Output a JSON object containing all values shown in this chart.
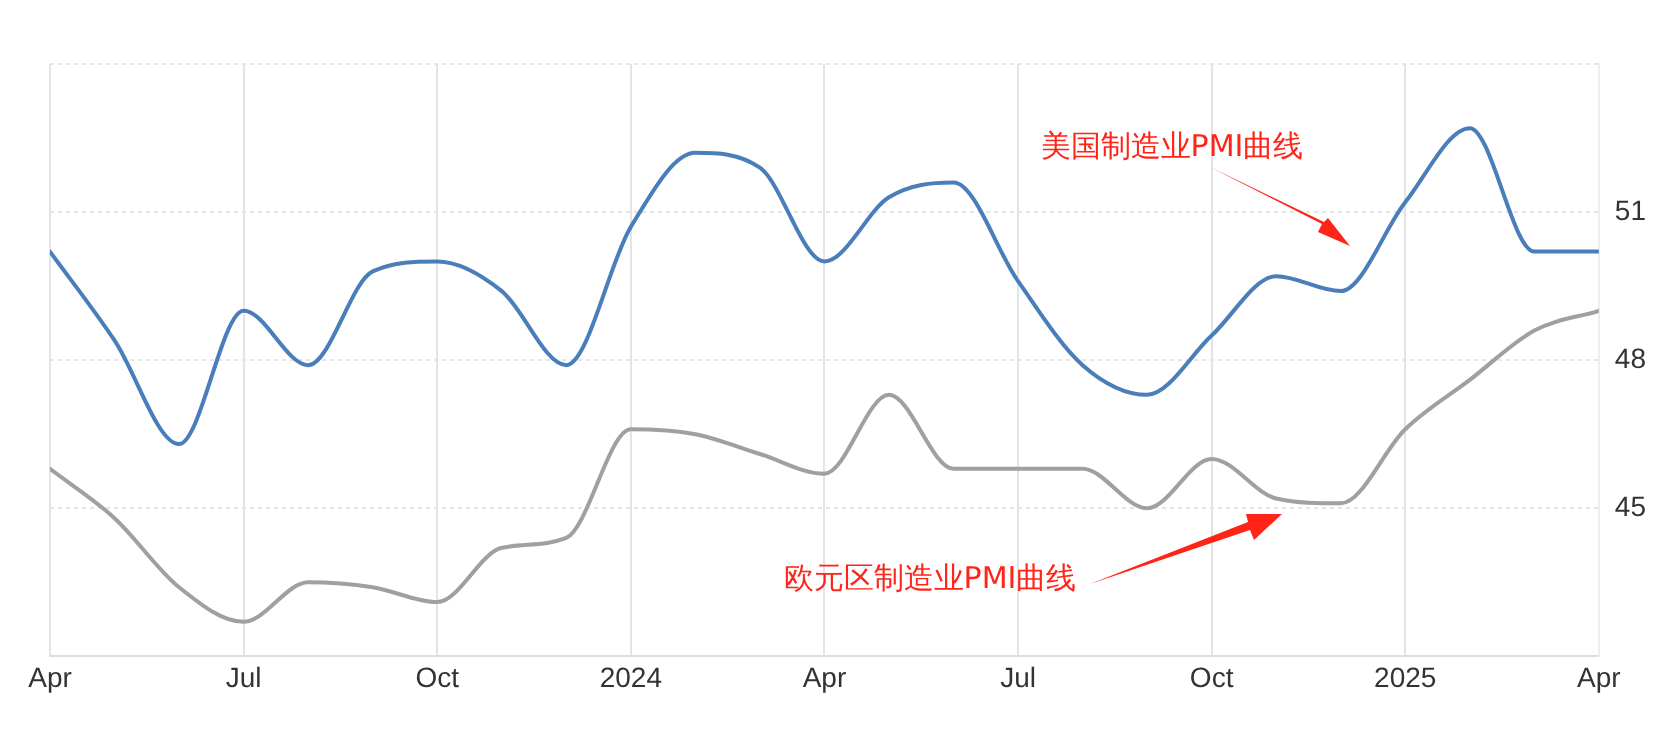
{
  "chart_data": {
    "type": "line",
    "x": [
      "2023-04",
      "2023-05",
      "2023-06",
      "2023-07",
      "2023-08",
      "2023-09",
      "2023-10",
      "2023-11",
      "2023-12",
      "2024-01",
      "2024-02",
      "2024-03",
      "2024-04",
      "2024-05",
      "2024-06",
      "2024-07",
      "2024-08",
      "2024-09",
      "2024-10",
      "2024-11",
      "2024-12",
      "2025-01",
      "2025-02",
      "2025-03",
      "2025-04"
    ],
    "series": [
      {
        "color": "#4a7ebb",
        "values": [
          50.2,
          48.4,
          46.3,
          49.0,
          47.9,
          49.8,
          50.0,
          49.4,
          47.9,
          50.7,
          52.2,
          51.9,
          50.0,
          51.3,
          51.6,
          49.6,
          47.9,
          47.3,
          48.5,
          49.7,
          49.4,
          51.2,
          52.7,
          50.2,
          50.2
        ]
      },
      {
        "color": "#a0a0a0",
        "values": [
          45.8,
          44.8,
          43.4,
          42.7,
          43.5,
          43.4,
          43.1,
          44.2,
          44.4,
          46.6,
          46.5,
          46.1,
          45.7,
          47.3,
          45.8,
          45.8,
          45.8,
          45.0,
          46.0,
          45.2,
          45.1,
          46.6,
          47.6,
          48.6,
          49.0
        ]
      }
    ],
    "xlim": [
      "2023-04",
      "2025-04"
    ],
    "xticks": [
      {
        "value": "2023-04",
        "label": "Apr"
      },
      {
        "value": "2023-07",
        "label": "Jul"
      },
      {
        "value": "2023-10",
        "label": "Oct"
      },
      {
        "value": "2024-01",
        "label": "2024"
      },
      {
        "value": "2024-04",
        "label": "Apr"
      },
      {
        "value": "2024-07",
        "label": "Jul"
      },
      {
        "value": "2024-10",
        "label": "Oct"
      },
      {
        "value": "2025-01",
        "label": "2025"
      },
      {
        "value": "2025-04",
        "label": "Apr"
      }
    ],
    "ylim": [
      42,
      54
    ],
    "yticks": [
      {
        "value": 42,
        "label": null
      },
      45,
      48,
      51,
      {
        "value": 54,
        "label": null
      }
    ],
    "grid": true,
    "legend": false,
    "marker": "none",
    "line_style": "solid",
    "annotations": [
      "美国制造业PMI曲线",
      "欧元区制造业PMI曲线"
    ]
  }
}
